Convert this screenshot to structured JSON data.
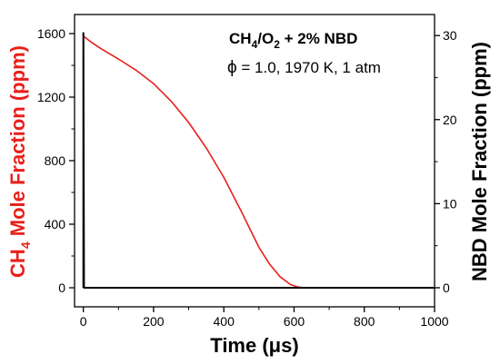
{
  "chart_data": {
    "type": "line",
    "xlabel": "Time (μs)",
    "ylabel_left": {
      "prefix": "CH",
      "sub": "4",
      "suffix": " Mole Fraction (ppm)"
    },
    "ylabel_right": "NBD Mole Fraction (ppm)",
    "xlim": [
      -25,
      1000
    ],
    "ylim_left": [
      -120,
      1720
    ],
    "ylim_right": [
      -2.27,
      32.5
    ],
    "x_ticks": [
      0,
      200,
      400,
      600,
      800,
      1000
    ],
    "x_tick_labels": [
      "0",
      "200",
      "400",
      "600",
      "800",
      "1000"
    ],
    "y_left_ticks": [
      0,
      400,
      800,
      1200,
      1600
    ],
    "y_left_tick_labels": [
      "0",
      "400",
      "800",
      "1200",
      "1600"
    ],
    "y_right_ticks": [
      0,
      10,
      20,
      30
    ],
    "y_right_tick_labels": [
      "0",
      "10",
      "20",
      "30"
    ],
    "grid": false,
    "legend": "none",
    "annotations": {
      "line1": {
        "a": "CH",
        "a_sub": "4",
        "b": "/O",
        "b_sub": "2",
        "c": " + 2% NBD"
      },
      "line2": {
        "phi": "ϕ",
        "rest": " = 1.0, 1970 K, 1 atm"
      }
    },
    "series": [
      {
        "axis": "left",
        "color": "#e8201c",
        "x": [
          0,
          20,
          50,
          100,
          150,
          200,
          250,
          300,
          350,
          400,
          450,
          500,
          530,
          560,
          590,
          610,
          630,
          650,
          700,
          800,
          900,
          1000
        ],
        "y": [
          1585,
          1550,
          1505,
          1440,
          1370,
          1285,
          1175,
          1040,
          880,
          695,
          480,
          255,
          150,
          70,
          20,
          5,
          0,
          0,
          0,
          0,
          0,
          0
        ]
      },
      {
        "axis": "right",
        "color": "#000000",
        "x": [
          0,
          0,
          0,
          2,
          1000
        ],
        "y": [
          0,
          0,
          30.3,
          0,
          0
        ]
      }
    ],
    "colors": {
      "ch4_axis": "#e8201c",
      "nbd_axis": "#000000"
    }
  }
}
